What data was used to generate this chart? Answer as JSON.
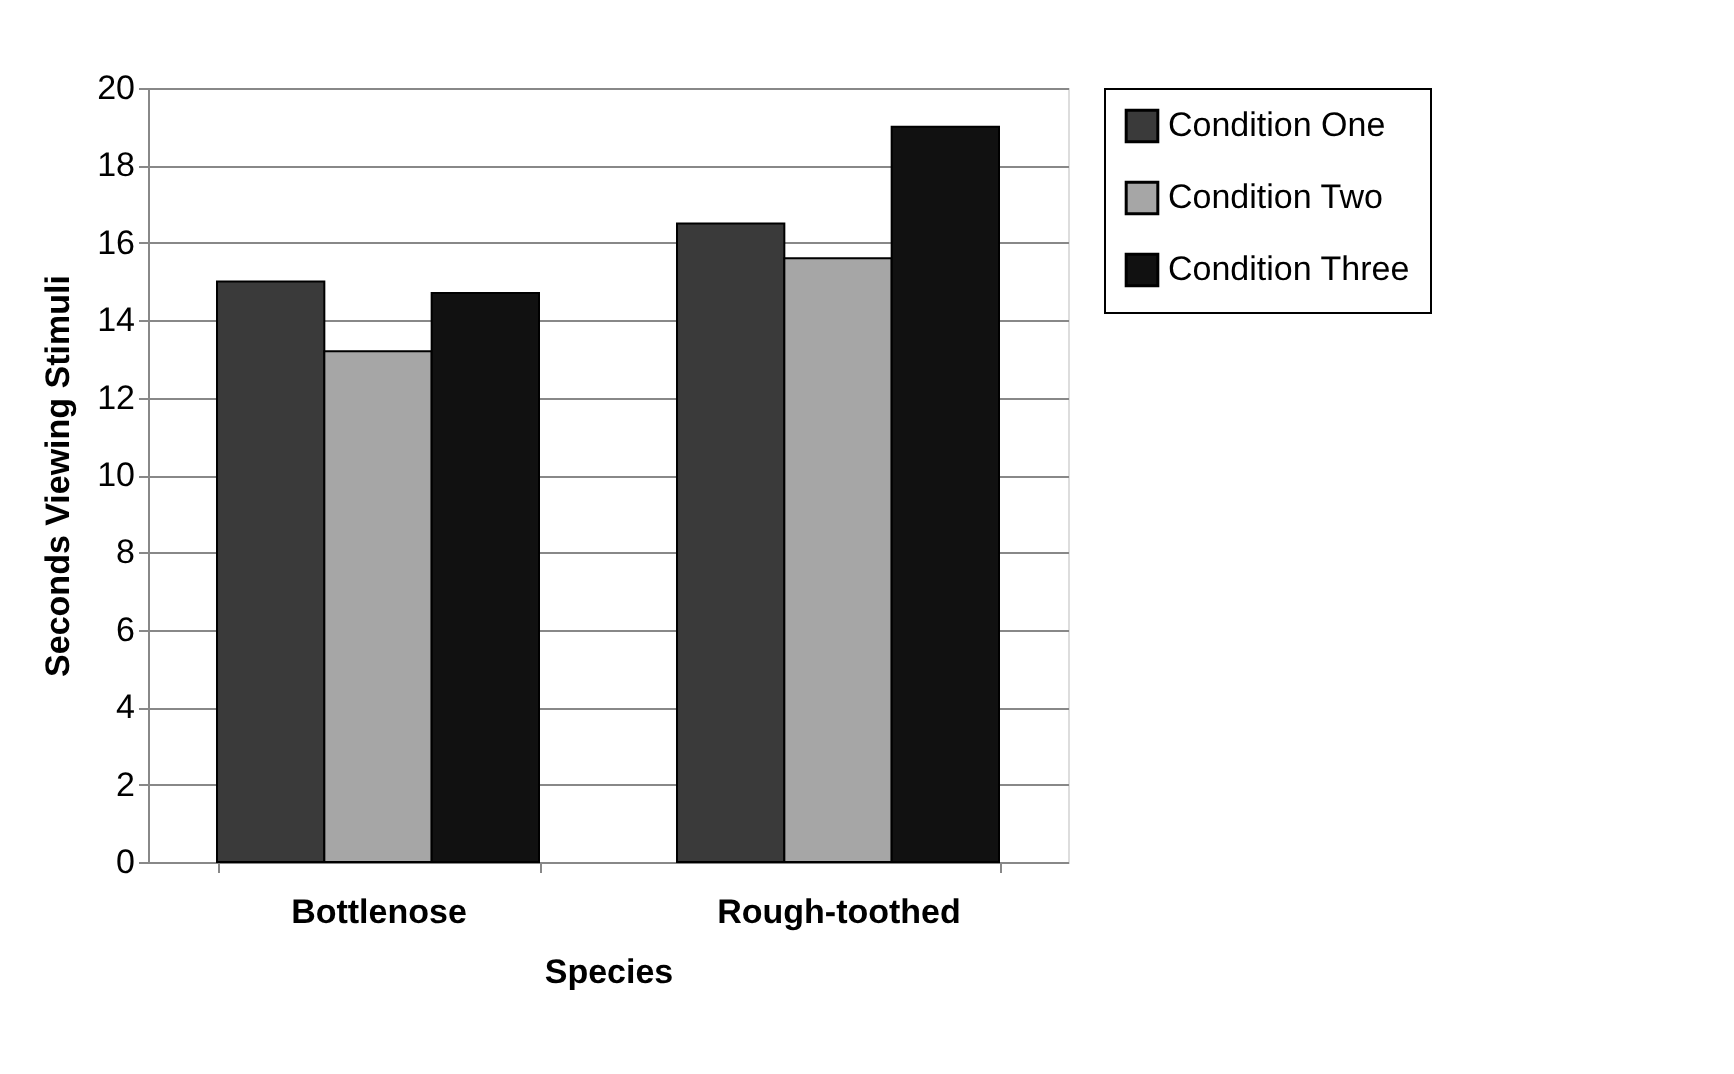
{
  "chart_data": {
    "type": "bar",
    "xlabel": "Species",
    "ylabel": "Seconds Viewing Stimuli",
    "categories": [
      "Bottlenose",
      "Rough-toothed"
    ],
    "series": [
      {
        "name": "Condition One",
        "color": "#3a3a3a",
        "values": [
          15,
          16.5
        ]
      },
      {
        "name": "Condition Two",
        "color": "#a6a6a6",
        "values": [
          13.2,
          15.6
        ]
      },
      {
        "name": "Condition Three",
        "color": "#111111",
        "values": [
          14.7,
          19
        ]
      }
    ],
    "ylim": [
      0,
      20
    ],
    "yticks": [
      0,
      2,
      4,
      6,
      8,
      10,
      12,
      14,
      16,
      18,
      20
    ],
    "grid": "y",
    "legend": "right"
  }
}
